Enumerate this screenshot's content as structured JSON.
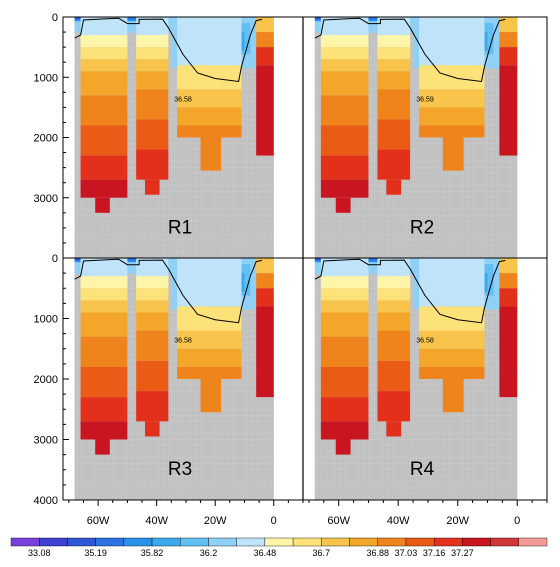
{
  "chart_data": {
    "type": "heatmap",
    "title": "",
    "xlabel": "",
    "ylabel": "",
    "xlim": [
      -72,
      10
    ],
    "ylim": [
      4000,
      0
    ],
    "x_ticks": [
      {
        "value": -60,
        "label": "60W"
      },
      {
        "value": -40,
        "label": "40W"
      },
      {
        "value": -20,
        "label": "20W"
      },
      {
        "value": 0,
        "label": "0"
      }
    ],
    "y_ticks": [
      {
        "value": 0,
        "label": "0"
      },
      {
        "value": 1000,
        "label": "1000"
      },
      {
        "value": 2000,
        "label": "2000"
      },
      {
        "value": 3000,
        "label": "3000"
      },
      {
        "value": 4000,
        "label": "4000"
      }
    ],
    "panels": [
      {
        "label": "R1",
        "contour_value": 36.58,
        "contour_label": "36.58"
      },
      {
        "label": "R2",
        "contour_value": 36.59,
        "contour_label": "36.59"
      },
      {
        "label": "R3",
        "contour_value": 36.58,
        "contour_label": "36.58"
      },
      {
        "label": "R4",
        "contour_value": 36.58,
        "contour_label": "36.58"
      }
    ],
    "colorbar": {
      "colors": [
        "#7a3fdd",
        "#3f3fd2",
        "#2f56d6",
        "#2b73e2",
        "#2b91ea",
        "#39aaf0",
        "#61bff3",
        "#8fd1f6",
        "#bfe3f8",
        "#fff5a8",
        "#fde27a",
        "#f8c44b",
        "#f4a62a",
        "#f0841c",
        "#ea5b16",
        "#e2301b",
        "#c9151f",
        "#d03838",
        "#f29a96"
      ],
      "labels": [
        "33.08",
        "35.19",
        "35.82",
        "36.2",
        "36.48",
        "36.7",
        "36.88",
        "37.03",
        "37.16",
        "37.27"
      ],
      "label_after_boundary": [
        1,
        3,
        5,
        7,
        9,
        11,
        13,
        14,
        15,
        16
      ]
    }
  }
}
